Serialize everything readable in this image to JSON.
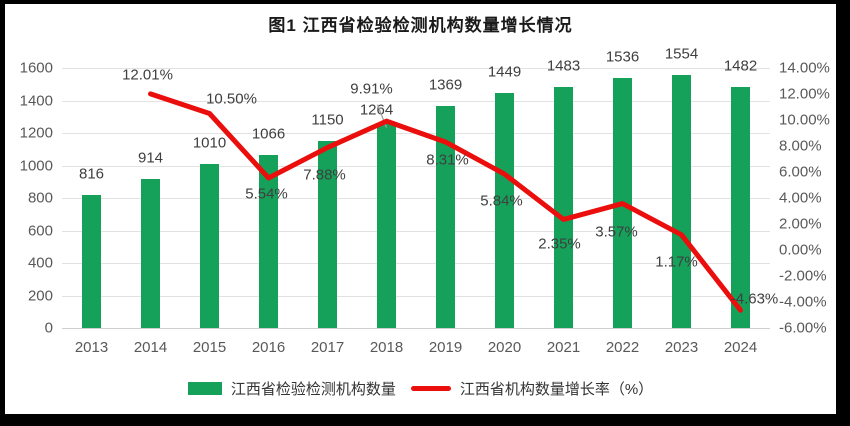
{
  "title": "图1 江西省检验检测机构数量增长情况",
  "legend": {
    "bar_label": "江西省检验检测机构数量",
    "line_label": "江西省机构数量增长率（%）"
  },
  "chart_data": {
    "type": "bar",
    "subtype": "bar+line combo, dual axis",
    "title": "图1 江西省检验检测机构数量增长情况",
    "categories": [
      "2013",
      "2014",
      "2015",
      "2016",
      "2017",
      "2018",
      "2019",
      "2020",
      "2021",
      "2022",
      "2023",
      "2024"
    ],
    "series": [
      {
        "name": "江西省检验检测机构数量",
        "type": "bar",
        "axis": "left",
        "color": "#16A15B",
        "values": [
          816,
          914,
          1010,
          1066,
          1150,
          1264,
          1369,
          1449,
          1483,
          1536,
          1554,
          1482
        ],
        "labels": [
          "816",
          "914",
          "1010",
          "1066",
          "1150",
          "1264",
          "1369",
          "1449",
          "1483",
          "1536",
          "1554",
          "1482"
        ]
      },
      {
        "name": "江西省机构数量增长率（%）",
        "type": "line",
        "axis": "right",
        "color": "#EA0E0C",
        "values": [
          null,
          12.01,
          10.5,
          5.54,
          7.88,
          9.91,
          8.31,
          5.84,
          2.35,
          3.57,
          1.17,
          -4.63
        ],
        "labels": [
          null,
          "12.01%",
          "10.50%",
          "5.54%",
          "7.88%",
          "9.91%",
          "8.31%",
          "5.84%",
          "2.35%",
          "3.57%",
          "1.17%",
          "-4.63%"
        ]
      }
    ],
    "left_axis": {
      "min": 0,
      "max": 1600,
      "step": 200,
      "ticks": [
        "1600",
        "1400",
        "1200",
        "1000",
        "800",
        "600",
        "400",
        "200",
        "0"
      ]
    },
    "right_axis": {
      "min": -6,
      "max": 14,
      "step": 2,
      "ticks": [
        "14.00%",
        "12.00%",
        "10.00%",
        "8.00%",
        "6.00%",
        "4.00%",
        "2.00%",
        "0.00%",
        "-2.00%",
        "-4.00%",
        "-6.00%"
      ]
    },
    "grid": true,
    "legend_position": "bottom",
    "colors": {
      "grid": "#E2E2E2",
      "axis_text": "#595959",
      "data_label": "#3F3F3F",
      "leader_line": "#A0A0A0"
    }
  }
}
